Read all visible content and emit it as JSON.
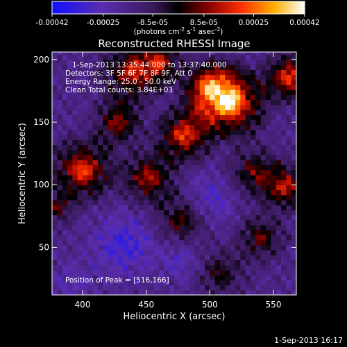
{
  "chart_data": {
    "type": "heatmap",
    "title": "Reconstructed RHESSI Image",
    "xlabel": "Heliocentric X (arcsec)",
    "ylabel": "Heliocentric Y (arcsec)",
    "xlim": [
      376,
      568
    ],
    "ylim": [
      12,
      206
    ],
    "x_ticks": [
      400,
      450,
      500,
      550
    ],
    "y_ticks": [
      50,
      100,
      150,
      200
    ],
    "colorbar": {
      "ticks": [
        -0.00042,
        -0.00025,
        -8.5e-05,
        8.5e-05,
        0.00025,
        0.00042
      ],
      "tick_labels": [
        "-0.00042",
        "-0.00025",
        "-8.5e-05",
        "8.5e-05",
        "0.00025",
        "0.00042"
      ],
      "range": [
        -0.00042,
        0.00042
      ],
      "colors": [
        "#1010ff",
        "#5a2db0",
        "#3a1a5a",
        "#000000",
        "#8a0000",
        "#ff3000",
        "#ffb000",
        "#ffffff"
      ]
    },
    "annotations": {
      "time": "1-Sep-2013 13:35:44.000 to 13:37:40.000",
      "detectors": "Detectors: 3F 5F 6F 7F 8F 9F, Att 0",
      "energy": "Energy Range: 25.0 - 50.0 keV",
      "clean": "Clean    Total counts: 3.84E+03",
      "peak": "Position of Peak = [516,166]"
    },
    "peaks": [
      {
        "x": 516,
        "y": 166,
        "amp": 1.0,
        "w": 11
      },
      {
        "x": 500,
        "y": 178,
        "amp": 0.7,
        "w": 9
      },
      {
        "x": 562,
        "y": 186,
        "amp": 0.75,
        "w": 8
      },
      {
        "x": 438,
        "y": 190,
        "amp": 0.6,
        "w": 10
      },
      {
        "x": 460,
        "y": 198,
        "amp": 0.55,
        "w": 8
      },
      {
        "x": 480,
        "y": 140,
        "amp": 0.75,
        "w": 9
      },
      {
        "x": 428,
        "y": 150,
        "amp": 0.55,
        "w": 8
      },
      {
        "x": 400,
        "y": 112,
        "amp": 0.75,
        "w": 10
      },
      {
        "x": 452,
        "y": 106,
        "amp": 0.6,
        "w": 9
      },
      {
        "x": 535,
        "y": 110,
        "amp": 0.45,
        "w": 9
      },
      {
        "x": 560,
        "y": 98,
        "amp": 0.6,
        "w": 8
      },
      {
        "x": 478,
        "y": 72,
        "amp": 0.45,
        "w": 9
      },
      {
        "x": 540,
        "y": 58,
        "amp": 0.45,
        "w": 8
      },
      {
        "x": 508,
        "y": 30,
        "amp": 0.35,
        "w": 9
      },
      {
        "x": 380,
        "y": 82,
        "amp": 0.4,
        "w": 6
      }
    ],
    "troughs": [
      {
        "x": 432,
        "y": 52,
        "amp": 0.8,
        "w": 16
      },
      {
        "x": 500,
        "y": 88,
        "amp": 0.6,
        "w": 14
      },
      {
        "x": 478,
        "y": 40,
        "amp": 0.5,
        "w": 12
      },
      {
        "x": 392,
        "y": 22,
        "amp": 0.4,
        "w": 12
      }
    ]
  },
  "footer": {
    "timestamp": "1-Sep-2013 16:17"
  },
  "colorbar_unit_prefix": "(photons cm",
  "colorbar_unit_mid": " s",
  "colorbar_unit_suffix": " asec",
  "colorbar_unit_close": ")",
  "colorbar_unit_exp1": "-2",
  "colorbar_unit_exp2": "-1",
  "colorbar_unit_exp3": "-2"
}
